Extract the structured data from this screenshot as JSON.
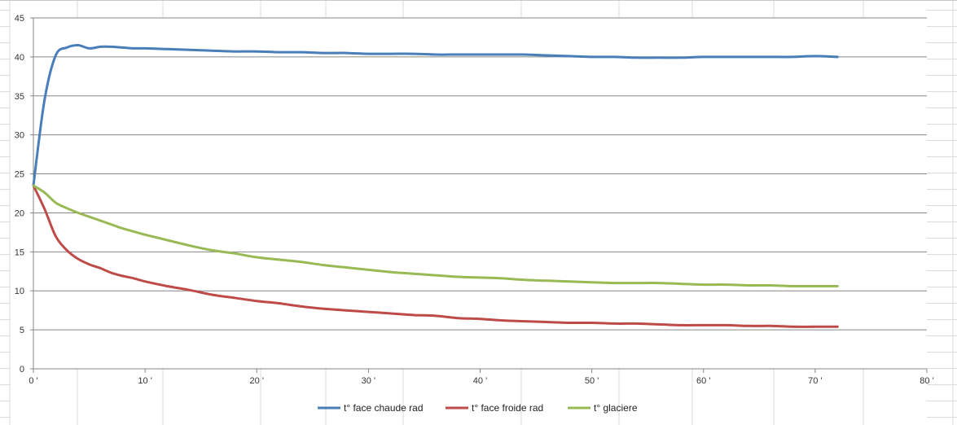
{
  "chart_data": {
    "type": "line",
    "title": "",
    "xlabel": "",
    "ylabel": "",
    "xlim": [
      0,
      80
    ],
    "ylim": [
      0,
      45
    ],
    "x_ticks": [
      0,
      10,
      20,
      30,
      40,
      50,
      60,
      70,
      80
    ],
    "x_tick_labels": [
      "0 '",
      "10 '",
      "20 '",
      "30 '",
      "40 '",
      "50 '",
      "60 '",
      "70 '",
      "80 '"
    ],
    "y_ticks": [
      0,
      5,
      10,
      15,
      20,
      25,
      30,
      35,
      40,
      45
    ],
    "y_tick_labels": [
      "0",
      "5",
      "10",
      "15",
      "20",
      "25",
      "30",
      "35",
      "40",
      "45"
    ],
    "grid": "horizontal",
    "legend_position": "bottom",
    "x": [
      0,
      1,
      2,
      3,
      4,
      5,
      6,
      7,
      8,
      9,
      10,
      12,
      14,
      16,
      18,
      20,
      22,
      24,
      26,
      28,
      30,
      32,
      34,
      36,
      38,
      40,
      42,
      44,
      46,
      48,
      50,
      52,
      54,
      56,
      58,
      60,
      62,
      64,
      66,
      68,
      70,
      72
    ],
    "series": [
      {
        "name": "t° face chaude rad",
        "color": "#4a7ebb",
        "values": [
          23.5,
          34.5,
          40.2,
          41.2,
          41.5,
          41.1,
          41.3,
          41.3,
          41.2,
          41.1,
          41.1,
          41.0,
          40.9,
          40.8,
          40.7,
          40.7,
          40.6,
          40.6,
          40.5,
          40.5,
          40.4,
          40.4,
          40.4,
          40.3,
          40.3,
          40.3,
          40.3,
          40.3,
          40.2,
          40.1,
          40.0,
          40.0,
          39.9,
          39.9,
          39.9,
          40.0,
          40.0,
          40.0,
          40.0,
          40.0,
          40.1,
          40.0
        ]
      },
      {
        "name": "t° face froide rad",
        "color": "#be4b48",
        "values": [
          23.5,
          20.5,
          17.0,
          15.2,
          14.1,
          13.4,
          12.9,
          12.3,
          11.9,
          11.6,
          11.2,
          10.6,
          10.1,
          9.5,
          9.1,
          8.7,
          8.4,
          8.0,
          7.7,
          7.5,
          7.3,
          7.1,
          6.9,
          6.8,
          6.5,
          6.4,
          6.2,
          6.1,
          6.0,
          5.9,
          5.9,
          5.8,
          5.8,
          5.7,
          5.6,
          5.6,
          5.6,
          5.5,
          5.5,
          5.4,
          5.4,
          5.4
        ]
      },
      {
        "name": "t° glaciere",
        "color": "#98b954",
        "values": [
          23.5,
          22.6,
          21.3,
          20.6,
          20.0,
          19.5,
          19.0,
          18.5,
          18.0,
          17.6,
          17.2,
          16.5,
          15.8,
          15.2,
          14.8,
          14.3,
          14.0,
          13.7,
          13.3,
          13.0,
          12.7,
          12.4,
          12.2,
          12.0,
          11.8,
          11.7,
          11.6,
          11.4,
          11.3,
          11.2,
          11.1,
          11.0,
          11.0,
          11.0,
          10.9,
          10.8,
          10.8,
          10.7,
          10.7,
          10.6,
          10.6,
          10.6
        ]
      }
    ]
  }
}
